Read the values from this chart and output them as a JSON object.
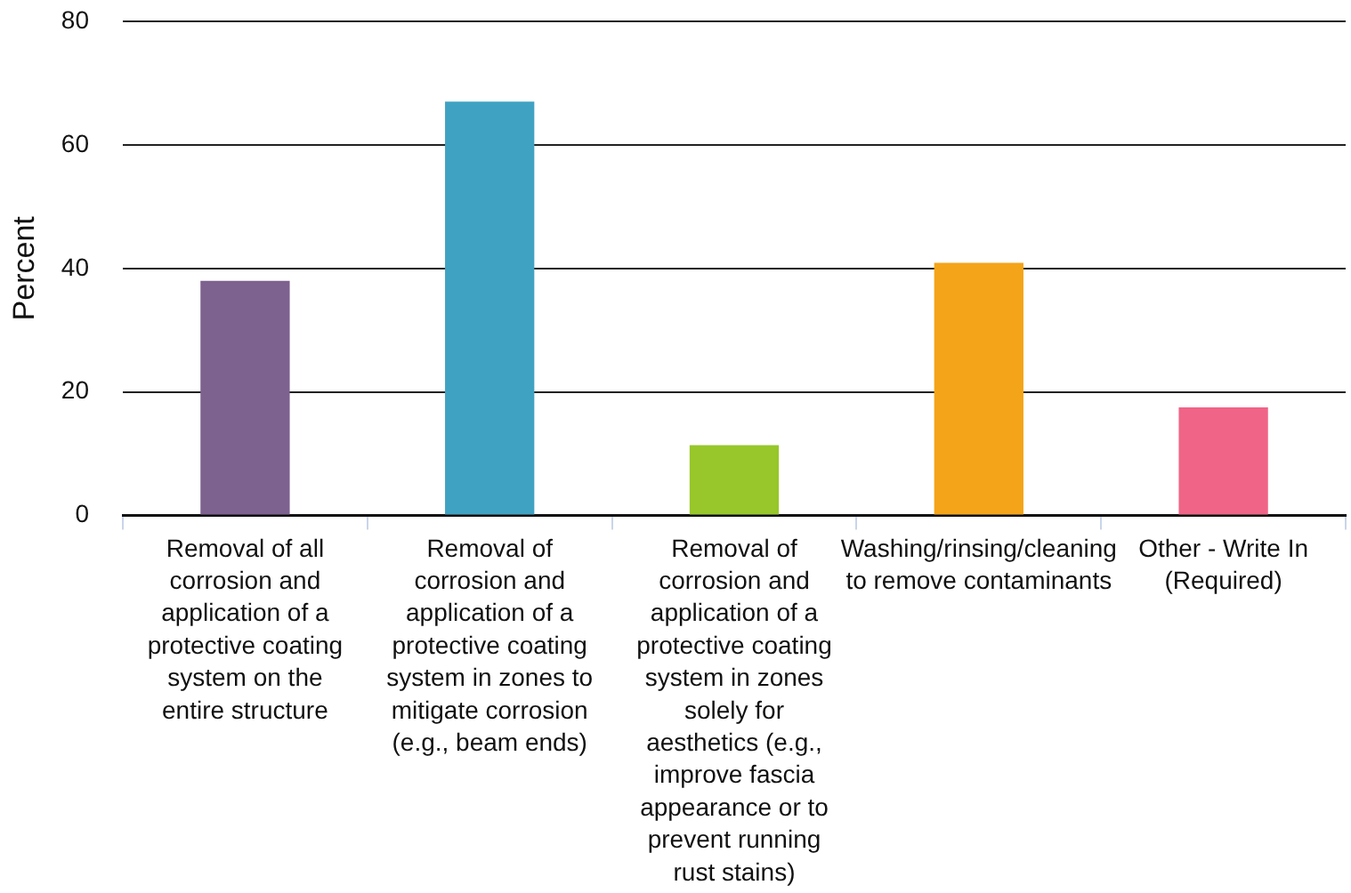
{
  "chart_data": {
    "type": "bar",
    "ylabel": "Percent",
    "categories": [
      "Removal of all corrosion and application of a protective coating system on the entire structure",
      "Removal of corrosion and application of a protective coating system in zones to mitigate corrosion (e.g., beam ends)",
      "Removal of corrosion and application of a protective coating system in zones solely for aesthetics (e.g., improve fascia appearance or to prevent running rust stains)",
      "Washing/rinsing/cleaning to remove contaminants",
      "Other - Write In (Required)"
    ],
    "values": [
      38,
      67,
      11.4,
      40.9,
      17.5
    ],
    "colors": [
      "#7d618f",
      "#40a2c2",
      "#97c72a",
      "#f4a418",
      "#ef6487"
    ],
    "ylim": [
      0,
      80
    ],
    "yticks": [
      0,
      20,
      40,
      60,
      80
    ],
    "grid": "y"
  }
}
